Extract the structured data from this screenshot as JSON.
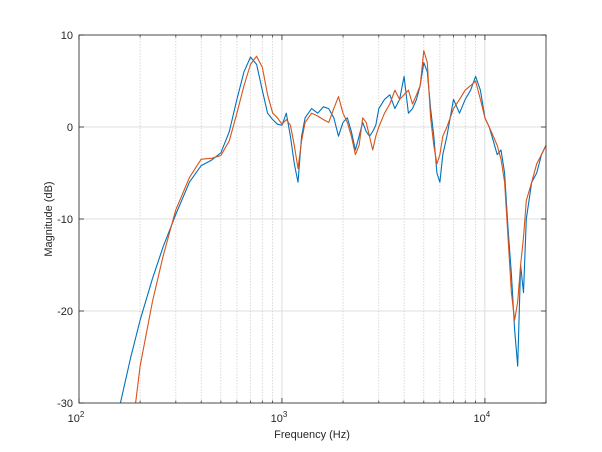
{
  "chart_data": {
    "type": "line",
    "title": "",
    "xlabel": "Frequency (Hz)",
    "ylabel": "Magnitude (dB)",
    "xscale": "log",
    "xlim": [
      100,
      20000
    ],
    "ylim": [
      -30,
      10
    ],
    "grid": true,
    "legend": "none",
    "x_ticks": [
      {
        "value": 100,
        "base": "10",
        "exp": "2"
      },
      {
        "value": 1000,
        "base": "10",
        "exp": "3"
      },
      {
        "value": 10000,
        "base": "10",
        "exp": "4"
      }
    ],
    "y_ticks": [
      {
        "value": 10,
        "label": "10"
      },
      {
        "value": 0,
        "label": "0"
      },
      {
        "value": -10,
        "label": "-10"
      },
      {
        "value": -20,
        "label": "-20"
      },
      {
        "value": -30,
        "label": "-30"
      }
    ],
    "series": [
      {
        "color": "#0072bd",
        "x": [
          160,
          180,
          200,
          230,
          260,
          300,
          350,
          400,
          450,
          500,
          550,
          600,
          650,
          700,
          750,
          800,
          850,
          900,
          950,
          1000,
          1050,
          1100,
          1150,
          1200,
          1250,
          1300,
          1400,
          1500,
          1600,
          1700,
          1800,
          1900,
          2000,
          2100,
          2200,
          2300,
          2400,
          2500,
          2600,
          2700,
          2800,
          2900,
          3000,
          3200,
          3400,
          3600,
          3800,
          4000,
          4200,
          4400,
          4600,
          4800,
          5000,
          5200,
          5400,
          5600,
          5800,
          6000,
          6200,
          6500,
          7000,
          7500,
          8000,
          8500,
          9000,
          9500,
          10000,
          10500,
          11000,
          11500,
          12000,
          12500,
          13000,
          13500,
          14000,
          14500,
          15000,
          15500,
          16000,
          17000,
          18000,
          19000,
          20000
        ],
        "y": [
          -30,
          -25,
          -21,
          -16.5,
          -13,
          -9.5,
          -6,
          -4.2,
          -3.6,
          -2.8,
          -0.5,
          3,
          6,
          7.6,
          6.8,
          4,
          1.5,
          0.8,
          0.3,
          0.2,
          1.5,
          -1,
          -4,
          -6,
          -1,
          1,
          2,
          1.5,
          2.2,
          2,
          1,
          -1,
          0.5,
          1,
          -0.5,
          -2.5,
          -1,
          0.5,
          -0.5,
          -1,
          -0.5,
          0.2,
          2,
          3,
          3.5,
          2,
          3,
          5.5,
          1.5,
          2,
          3,
          4.5,
          7,
          6,
          2,
          -1,
          -5,
          -6,
          -3,
          -1,
          3,
          1.5,
          3,
          4,
          5.5,
          4,
          1,
          0,
          -1.5,
          -3,
          -2.5,
          -5,
          -11,
          -16,
          -22,
          -26,
          -15,
          -18,
          -10,
          -6,
          -5,
          -3,
          -2
        ]
      },
      {
        "color": "#d95319",
        "x": [
          190,
          200,
          230,
          260,
          300,
          350,
          400,
          450,
          500,
          550,
          600,
          650,
          700,
          750,
          800,
          850,
          900,
          950,
          1000,
          1050,
          1100,
          1150,
          1200,
          1250,
          1300,
          1400,
          1500,
          1600,
          1700,
          1800,
          1900,
          2000,
          2100,
          2200,
          2300,
          2400,
          2500,
          2600,
          2700,
          2800,
          2900,
          3000,
          3200,
          3400,
          3600,
          3800,
          4000,
          4200,
          4400,
          4600,
          4800,
          5000,
          5200,
          5400,
          5600,
          5800,
          6000,
          6200,
          6500,
          7000,
          7500,
          8000,
          8500,
          9000,
          9500,
          10000,
          10500,
          11000,
          11500,
          12000,
          12500,
          13000,
          13500,
          14000,
          14500,
          15000,
          15500,
          16000,
          17000,
          18000,
          19000,
          20000
        ],
        "y": [
          -30,
          -26,
          -19,
          -14,
          -9,
          -5.5,
          -3.5,
          -3.4,
          -3.1,
          -1.5,
          1.5,
          4.5,
          6.8,
          7.7,
          6.5,
          3.5,
          1.5,
          1,
          0.3,
          0.8,
          0.2,
          -2,
          -4.5,
          -1.5,
          0.5,
          1.5,
          1.2,
          0.8,
          0.5,
          2,
          3.3,
          1.5,
          0.5,
          -1,
          -3,
          -2,
          1,
          0.5,
          -1,
          -2.5,
          -1,
          0,
          1.5,
          2.5,
          4,
          3,
          3.5,
          4,
          2.5,
          3.5,
          4.5,
          8.3,
          7,
          1,
          -2,
          -4,
          -3,
          -1,
          0,
          2,
          3,
          4,
          4.5,
          5,
          3,
          1,
          0,
          -1,
          -2,
          -3.5,
          -6,
          -12,
          -18,
          -21,
          -19,
          -15,
          -12,
          -8,
          -6,
          -4,
          -3,
          -2
        ]
      }
    ]
  }
}
